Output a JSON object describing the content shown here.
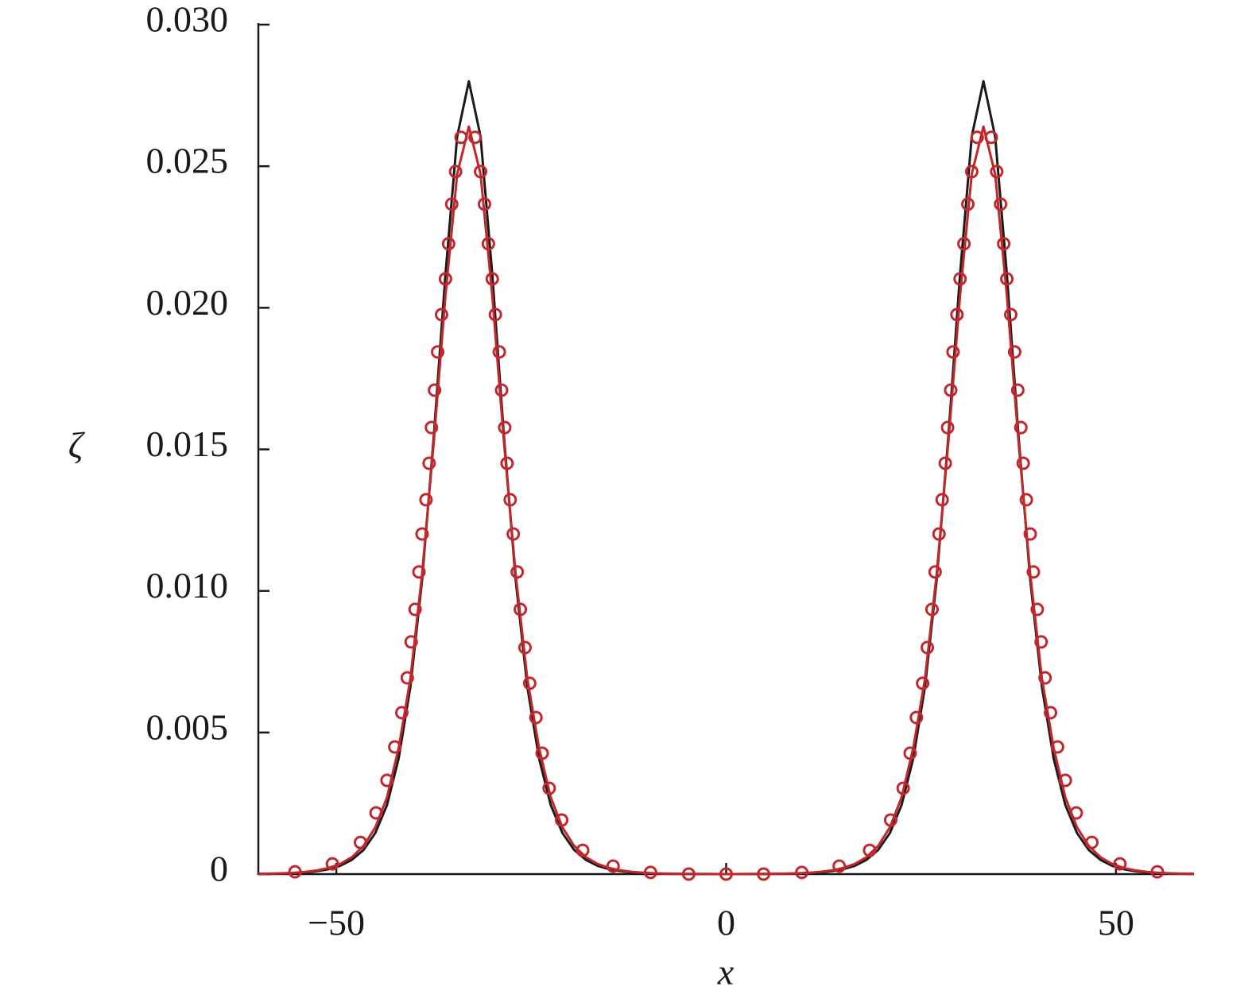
{
  "chart_data": {
    "type": "line",
    "xlabel": "x",
    "ylabel": "ζ",
    "xlim": [
      -60,
      60
    ],
    "ylim": [
      0,
      0.03
    ],
    "xticks": [
      {
        "value": -50,
        "label": "−50"
      },
      0,
      50
    ],
    "yticks": [
      0,
      0.005,
      {
        "value": 0.01,
        "label": "0.010"
      },
      0.015,
      {
        "value": 0.02,
        "label": "0.020"
      },
      0.025,
      {
        "value": 0.03,
        "label": "0.030"
      }
    ],
    "x": [
      -60,
      -58.5,
      -57,
      -55.5,
      -54,
      -52.5,
      -51,
      -49.5,
      -48,
      -46.5,
      -45,
      -43.5,
      -42,
      -40.5,
      -39,
      -37.5,
      -36,
      -34.5,
      -33,
      -31.5,
      -30,
      -28.5,
      -27,
      -25.5,
      -24,
      -22.5,
      -21,
      -19.5,
      -18,
      -16.5,
      -15,
      -13.5,
      -12,
      -10.5,
      -9,
      -7.5,
      -6,
      -4.5,
      -3,
      -1.5,
      0,
      1.5,
      3,
      4.5,
      6,
      7.5,
      9,
      10.5,
      12,
      13.5,
      15,
      16.5,
      18,
      19.5,
      21,
      22.5,
      24,
      25.5,
      27,
      28.5,
      30,
      31.5,
      33,
      34.5,
      36,
      37.5,
      39,
      40.5,
      42,
      43.5,
      45,
      46.5,
      48,
      49.5,
      51,
      52.5,
      54,
      55.5,
      57,
      58.5,
      60
    ],
    "series": [
      {
        "color": "#1a1a1a",
        "values": [
          6.7e-06,
          1.16e-05,
          1.98e-05,
          3.39e-05,
          5.82e-05,
          0.0001,
          0.000172,
          0.000293,
          0.000505,
          0.000854,
          0.00145,
          0.00244,
          0.00409,
          0.00661,
          0.01039,
          0.01546,
          0.02119,
          0.02605,
          0.028,
          0.02605,
          0.02119,
          0.01546,
          0.01039,
          0.00661,
          0.00409,
          0.00244,
          0.00145,
          0.000854,
          0.000505,
          0.000293,
          0.000172,
          0.0001,
          5.82e-05,
          3.39e-05,
          1.98e-05,
          1.16e-05,
          6.7e-06,
          3.9e-06,
          2.3e-06,
          1.3e-06,
          8e-07,
          1.3e-06,
          2.3e-06,
          3.9e-06,
          6.7e-06,
          1.16e-05,
          1.98e-05,
          3.39e-05,
          5.82e-05,
          0.0001,
          0.000172,
          0.000293,
          0.000505,
          0.000854,
          0.00145,
          0.00244,
          0.00409,
          0.00661,
          0.01039,
          0.01546,
          0.02119,
          0.02605,
          0.028,
          0.02605,
          0.02119,
          0.01546,
          0.01039,
          0.00661,
          0.00409,
          0.00244,
          0.00145,
          0.000854,
          0.000505,
          0.000293,
          0.000172,
          0.0001,
          5.82e-05,
          3.39e-05,
          1.98e-05,
          1.16e-05,
          6.7e-06
        ]
      },
      {
        "color": "#c0282d",
        "values": [
          9.7e-06,
          1.63e-05,
          2.74e-05,
          4.59e-05,
          7.68e-05,
          0.000129,
          0.000216,
          0.000359,
          0.000599,
          0.000997,
          0.00165,
          0.00271,
          0.00446,
          0.0069,
          0.0106,
          0.01526,
          0.02044,
          0.02472,
          0.0264,
          0.02472,
          0.02044,
          0.01526,
          0.0106,
          0.0069,
          0.00446,
          0.00271,
          0.00165,
          0.000997,
          0.000599,
          0.000359,
          0.000216,
          0.000129,
          7.68e-05,
          4.59e-05,
          2.74e-05,
          1.63e-05,
          9.7e-06,
          5.8e-06,
          3.5e-06,
          2.1e-06,
          1.2e-06,
          2.1e-06,
          3.5e-06,
          5.8e-06,
          9.7e-06,
          1.63e-05,
          2.74e-05,
          4.59e-05,
          7.68e-05,
          0.000129,
          0.000216,
          0.000359,
          0.000599,
          0.000997,
          0.00165,
          0.00271,
          0.00446,
          0.0069,
          0.0106,
          0.01526,
          0.02044,
          0.02472,
          0.0264,
          0.02472,
          0.02044,
          0.01526,
          0.0106,
          0.0069,
          0.00446,
          0.00271,
          0.00165,
          0.000997,
          0.000599,
          0.000359,
          0.000216,
          0.000129,
          7.68e-05,
          4.59e-05,
          2.74e-05,
          1.63e-05,
          9.7e-06
        ]
      },
      {
        "color": "#c0282d",
        "marker": "circle",
        "x": [
          -55.3,
          -50.5,
          -46.9,
          -44.9,
          -43.5,
          -42.5,
          -41.6,
          -40.9,
          -40.4,
          -39.9,
          -39.4,
          -39.0,
          -38.5,
          -38.1,
          -37.8,
          -37.4,
          -37.0,
          -36.5,
          -36.0,
          -35.6,
          -35.2,
          -34.7,
          -34.0,
          -32.2,
          -31.5,
          -31.0,
          -30.5,
          -30.0,
          -29.6,
          -29.1,
          -28.8,
          -28.4,
          -28.1,
          -27.7,
          -27.3,
          -26.8,
          -26.4,
          -25.8,
          -25.2,
          -24.4,
          -23.6,
          -22.7,
          -21.1,
          -18.4,
          -14.5,
          -9.7,
          -4.8,
          0,
          4.8,
          9.7,
          14.5,
          18.4,
          21.1,
          22.7,
          23.6,
          24.4,
          25.2,
          25.8,
          26.4,
          26.8,
          27.3,
          27.7,
          28.1,
          28.4,
          28.8,
          29.1,
          29.6,
          30.0,
          30.5,
          31.0,
          31.5,
          32.2,
          34.0,
          34.7,
          35.2,
          35.6,
          36.0,
          36.5,
          37.0,
          37.4,
          37.8,
          38.1,
          38.5,
          39.0,
          39.4,
          39.9,
          40.4,
          40.9,
          41.6,
          42.5,
          43.5,
          44.9,
          46.9,
          50.5,
          55.3
        ],
        "values": [
          8e-05,
          0.00036,
          0.00112,
          0.00216,
          0.00331,
          0.00449,
          0.0057,
          0.00693,
          0.0082,
          0.00935,
          0.01067,
          0.01201,
          0.01322,
          0.01451,
          0.01577,
          0.01709,
          0.01844,
          0.01976,
          0.02102,
          0.02226,
          0.02366,
          0.02481,
          0.02602,
          0.02602,
          0.02481,
          0.02366,
          0.02226,
          0.02102,
          0.01976,
          0.01844,
          0.01709,
          0.01577,
          0.01451,
          0.01322,
          0.01201,
          0.01067,
          0.00935,
          0.008,
          0.00674,
          0.00553,
          0.00427,
          0.00303,
          0.00191,
          0.00084,
          0.00028,
          6e-05,
          0,
          0,
          0,
          6e-05,
          0.00028,
          0.00084,
          0.00191,
          0.00303,
          0.00427,
          0.00553,
          0.00674,
          0.008,
          0.00935,
          0.01067,
          0.01201,
          0.01322,
          0.01451,
          0.01577,
          0.01709,
          0.01844,
          0.01976,
          0.02102,
          0.02226,
          0.02366,
          0.02481,
          0.02602,
          0.02602,
          0.02481,
          0.02366,
          0.02226,
          0.02102,
          0.01976,
          0.01844,
          0.01709,
          0.01577,
          0.01451,
          0.01322,
          0.01201,
          0.01067,
          0.00935,
          0.0082,
          0.00693,
          0.0057,
          0.00449,
          0.00331,
          0.00216,
          0.00112,
          0.00036,
          8e-05
        ]
      }
    ]
  }
}
